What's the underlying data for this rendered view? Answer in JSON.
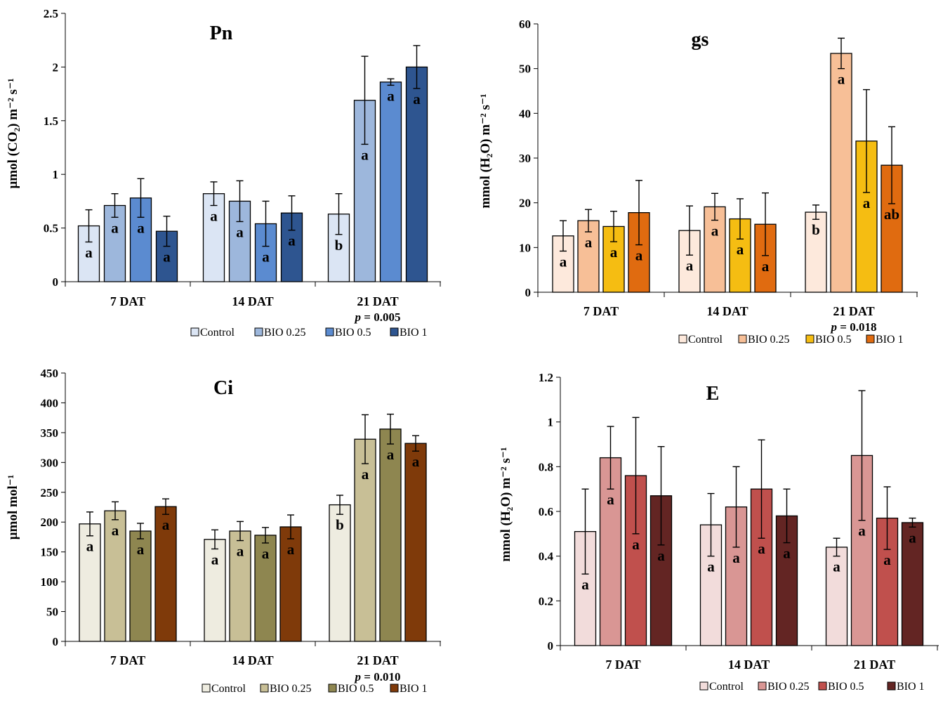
{
  "chart_data": [
    {
      "id": "pn",
      "type": "bar",
      "title": "Pn",
      "ylabel": "µmol (CO₂) m⁻² s⁻¹",
      "ylim": [
        0,
        2.5
      ],
      "yticks": [
        "0",
        "0.5",
        "1",
        "1.5",
        "2",
        "2.5"
      ],
      "ytick_values": [
        0,
        0.5,
        1,
        1.5,
        2,
        2.5
      ],
      "categories": [
        "7 DAT",
        "14 DAT",
        "21 DAT"
      ],
      "p_values": [
        "",
        "",
        "p = 0.005"
      ],
      "legend": [
        "Control",
        "BIO 0.25",
        "BIO 0.5",
        "BIO 1"
      ],
      "colors": [
        "#dbe5f4",
        "#9db7dc",
        "#5b8bd0",
        "#2e5590"
      ],
      "series": [
        {
          "name": "Control",
          "values": [
            0.52,
            0.82,
            0.63
          ],
          "errors": [
            0.15,
            0.11,
            0.19
          ],
          "letters": [
            "a",
            "a",
            "b"
          ]
        },
        {
          "name": "BIO 0.25",
          "values": [
            0.71,
            0.75,
            1.69
          ],
          "errors": [
            0.11,
            0.19,
            0.41
          ],
          "letters": [
            "a",
            "a",
            "a"
          ]
        },
        {
          "name": "BIO 0.5",
          "values": [
            0.78,
            0.54,
            1.86
          ],
          "errors": [
            0.18,
            0.21,
            0.03
          ],
          "letters": [
            "a",
            "a",
            "a"
          ]
        },
        {
          "name": "BIO 1",
          "values": [
            0.47,
            0.64,
            2.0
          ],
          "errors": [
            0.14,
            0.16,
            0.2
          ],
          "letters": [
            "a",
            "a",
            "a"
          ]
        }
      ]
    },
    {
      "id": "gs",
      "type": "bar",
      "title": "gs",
      "ylabel": "mmol (H₂O) m⁻² s⁻¹",
      "ylim": [
        0,
        60
      ],
      "yticks": [
        "0",
        "10",
        "20",
        "30",
        "40",
        "50",
        "60"
      ],
      "ytick_values": [
        0,
        10,
        20,
        30,
        40,
        50,
        60
      ],
      "categories": [
        "7 DAT",
        "14 DAT",
        "21 DAT"
      ],
      "p_values": [
        "",
        "",
        "p = 0.018"
      ],
      "legend": [
        "Control",
        "BIO 0.25",
        "BIO 0.5",
        "BIO 1"
      ],
      "colors": [
        "#fde9dc",
        "#f7bf97",
        "#f5bd12",
        "#e06b10"
      ],
      "series": [
        {
          "name": "Control",
          "values": [
            12.6,
            13.8,
            17.9
          ],
          "errors": [
            3.4,
            5.5,
            1.6
          ],
          "letters": [
            "a",
            "a",
            "b"
          ]
        },
        {
          "name": "BIO 0.25",
          "values": [
            16.0,
            19.1,
            53.4
          ],
          "errors": [
            2.5,
            3.0,
            3.4
          ],
          "letters": [
            "a",
            "a",
            "a"
          ]
        },
        {
          "name": "BIO 0.5",
          "values": [
            14.7,
            16.4,
            33.8
          ],
          "errors": [
            3.4,
            4.5,
            11.5
          ],
          "letters": [
            "a",
            "a",
            "a"
          ]
        },
        {
          "name": "BIO 1",
          "values": [
            17.8,
            15.2,
            28.4
          ],
          "errors": [
            7.2,
            7.0,
            8.6
          ],
          "letters": [
            "a",
            "a",
            "ab"
          ]
        }
      ]
    },
    {
      "id": "ci",
      "type": "bar",
      "title": "Ci",
      "ylabel": "µmol mol⁻¹",
      "ylim": [
        0,
        450
      ],
      "yticks": [
        "0",
        "50",
        "100",
        "150",
        "200",
        "250",
        "300",
        "350",
        "400",
        "450"
      ],
      "ytick_values": [
        0,
        50,
        100,
        150,
        200,
        250,
        300,
        350,
        400,
        450
      ],
      "categories": [
        "7 DAT",
        "14 DAT",
        "21 DAT"
      ],
      "p_values": [
        "",
        "",
        "p = 0.010"
      ],
      "legend": [
        "Control",
        "BIO 0.25",
        "BIO 0.5",
        "BIO 1"
      ],
      "colors": [
        "#eeece0",
        "#c8bf96",
        "#8e8650",
        "#7f3a0a"
      ],
      "series": [
        {
          "name": "Control",
          "values": [
            197,
            171,
            229
          ],
          "errors": [
            20,
            16,
            16
          ],
          "letters": [
            "a",
            "a",
            "b"
          ]
        },
        {
          "name": "BIO 0.25",
          "values": [
            219,
            185,
            339
          ],
          "errors": [
            15,
            16,
            41
          ],
          "letters": [
            "a",
            "a",
            "a"
          ]
        },
        {
          "name": "BIO 0.5",
          "values": [
            185,
            178,
            356
          ],
          "errors": [
            13,
            13,
            25
          ],
          "letters": [
            "a",
            "a",
            "a"
          ]
        },
        {
          "name": "BIO 1",
          "values": [
            226,
            192,
            332
          ],
          "errors": [
            13,
            20,
            13
          ],
          "letters": [
            "a",
            "a",
            "a"
          ]
        }
      ]
    },
    {
      "id": "e",
      "type": "bar",
      "title": "E",
      "ylabel": "mmol (H₂O) m⁻² s⁻¹",
      "ylim": [
        0,
        1.2
      ],
      "yticks": [
        "0",
        "0.2",
        "0.4",
        "0.6",
        "0.8",
        "1",
        "1.2"
      ],
      "ytick_values": [
        0,
        0.2,
        0.4,
        0.6,
        0.8,
        1.0,
        1.2
      ],
      "categories": [
        "7 DAT",
        "14 DAT",
        "21 DAT"
      ],
      "p_values": [
        "",
        "",
        ""
      ],
      "legend": [
        "Control",
        "BIO 0.25",
        "BIO 0.5",
        "BIO 1"
      ],
      "colors": [
        "#f2dcdb",
        "#d99694",
        "#c0504d",
        "#632523"
      ],
      "series": [
        {
          "name": "Control",
          "values": [
            0.51,
            0.54,
            0.44
          ],
          "errors": [
            0.19,
            0.14,
            0.04
          ],
          "letters": [
            "a",
            "a",
            "a"
          ]
        },
        {
          "name": "BIO 0.25",
          "values": [
            0.84,
            0.62,
            0.85
          ],
          "errors": [
            0.14,
            0.18,
            0.29
          ],
          "letters": [
            "a",
            "a",
            "a"
          ]
        },
        {
          "name": "BIO 0.5",
          "values": [
            0.76,
            0.7,
            0.57
          ],
          "errors": [
            0.26,
            0.22,
            0.14
          ],
          "letters": [
            "a",
            "a",
            "a"
          ]
        },
        {
          "name": "BIO 1",
          "values": [
            0.67,
            0.58,
            0.55
          ],
          "errors": [
            0.22,
            0.12,
            0.02
          ],
          "letters": [
            "a",
            "a",
            "a"
          ]
        }
      ]
    }
  ]
}
